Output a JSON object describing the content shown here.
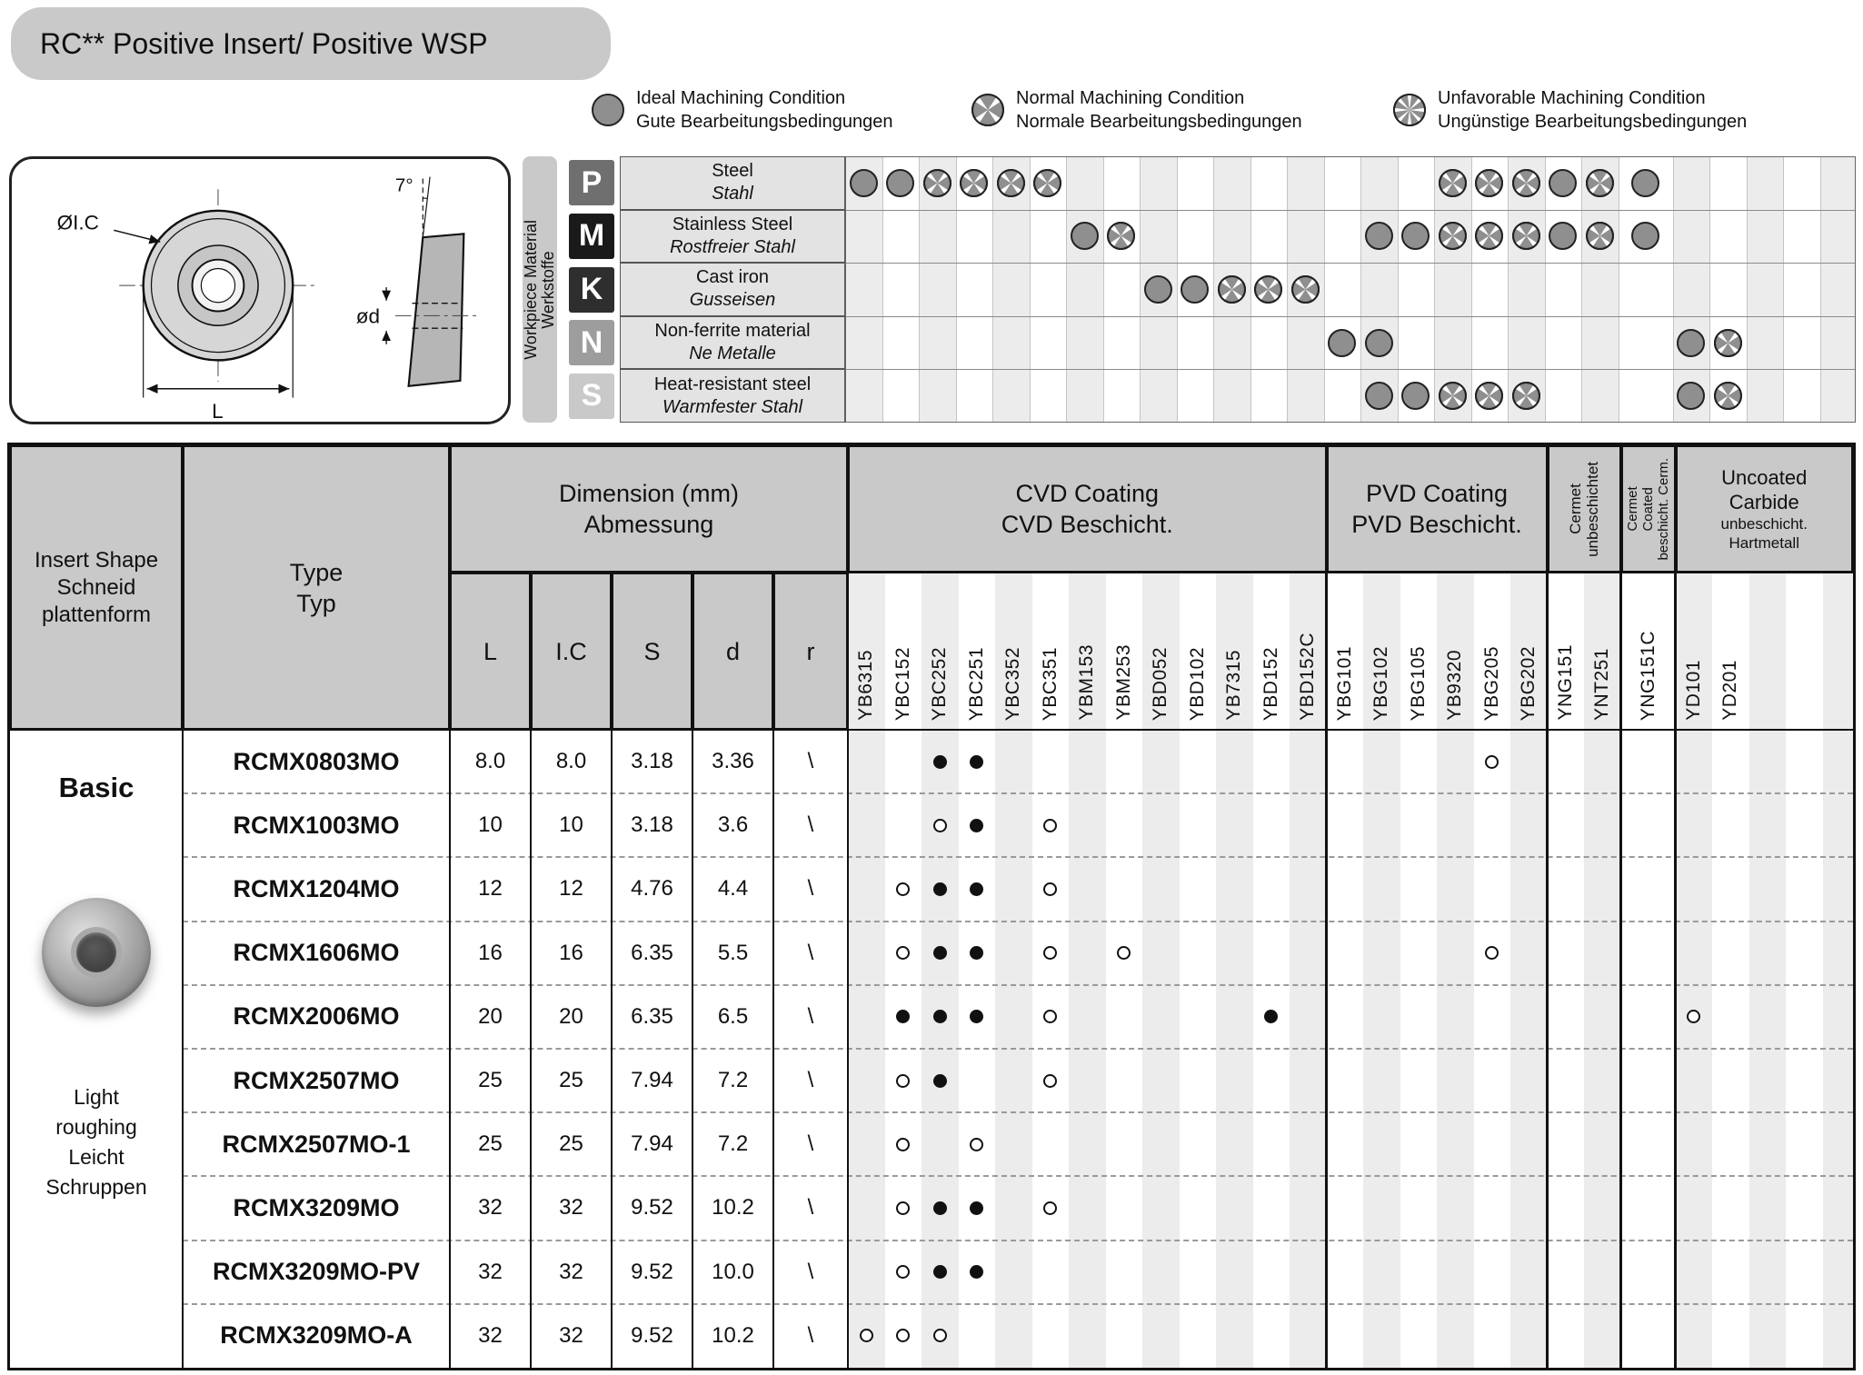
{
  "title": "RC** Positive Insert/ Positive WSP",
  "legend": [
    {
      "kind": "ideal",
      "en": "Ideal Machining Condition",
      "de": "Gute Bearbeitungsbedingungen"
    },
    {
      "kind": "normal",
      "en": "Normal Machining Condition",
      "de": "Normale Bearbeitungsbedingungen"
    },
    {
      "kind": "unfavorable",
      "en": "Unfavorable Machining Condition",
      "de": "Ungünstige Bearbeitungsbedingungen"
    }
  ],
  "diagram": {
    "angle_label": "7°",
    "ic_label": "ØI.C",
    "hole_label": "ød",
    "length_label": "L"
  },
  "materials": {
    "axis_en": "Workpiece Material",
    "axis_de": "Werkstoffe",
    "rows": [
      {
        "code": "P",
        "color": "#6f6f6f",
        "en": "Steel",
        "de": "Stahl",
        "marks": {
          "YB6315": "ideal",
          "YBC152": "ideal",
          "YBC252": "normal",
          "YBC251": "normal",
          "YBC352": "normal",
          "YBC351": "normal",
          "YB9320": "normal",
          "YBG205": "normal",
          "YBG202": "normal",
          "YNG151": "ideal",
          "YNT251": "normal",
          "YNG151C": "ideal"
        }
      },
      {
        "code": "M",
        "color": "#1a1a1a",
        "en": "Stainless Steel",
        "de": "Rostfreier Stahl",
        "marks": {
          "YBM153": "ideal",
          "YBM253": "normal",
          "YBG102": "ideal",
          "YBG105": "ideal",
          "YB9320": "normal",
          "YBG205": "normal",
          "YBG202": "normal",
          "YNG151": "ideal",
          "YNT251": "normal",
          "YNG151C": "ideal"
        }
      },
      {
        "code": "K",
        "color": "#2e2e2e",
        "en": "Cast iron",
        "de": "Gusseisen",
        "marks": {
          "YBD052": "ideal",
          "YBD102": "ideal",
          "YB7315": "normal",
          "YBD152": "normal",
          "YBD152C": "normal"
        }
      },
      {
        "code": "N",
        "color": "#9d9d9d",
        "en": "Non-ferrite material",
        "de": "Ne Metalle",
        "marks": {
          "YBG101": "ideal",
          "YBG102": "ideal",
          "YD101": "ideal",
          "YD201": "normal"
        }
      },
      {
        "code": "S",
        "color": "#c9c9c9",
        "en": "Heat-resistant steel",
        "de": "Warmfester Stahl",
        "marks": {
          "YBG102": "ideal",
          "YBG105": "ideal",
          "YB9320": "normal",
          "YBG205": "normal",
          "YBG202": "normal",
          "YD101": "ideal",
          "YD201": "normal"
        }
      }
    ]
  },
  "table": {
    "headers": {
      "insert_shape": [
        "Insert Shape",
        "Schneid",
        "plattenform"
      ],
      "type": [
        "Type",
        "Typ"
      ],
      "dimension": [
        "Dimension (mm)",
        "Abmessung"
      ],
      "dim_cols": [
        "L",
        "I.C",
        "S",
        "d",
        "r"
      ],
      "cvd": [
        "CVD Coating",
        "CVD Beschicht."
      ],
      "pvd": [
        "PVD Coating",
        "PVD Beschicht."
      ],
      "cermet": [
        "Cermet",
        "unbeschichtet"
      ],
      "cermet_coated": [
        "Cermet",
        "Coated",
        "beschicht. Cerm."
      ],
      "uncoated": [
        "Uncoated",
        "Carbide",
        "unbeschicht.",
        "Hartmetall"
      ]
    },
    "grades": {
      "cvd": [
        "YB6315",
        "YBC152",
        "YBC252",
        "YBC251",
        "YBC352",
        "YBC351",
        "YBM153",
        "YBM253",
        "YBD052",
        "YBD102",
        "YB7315",
        "YBD152",
        "YBD152C"
      ],
      "pvd": [
        "YBG101",
        "YBG102",
        "YBG105",
        "YB9320",
        "YBG205",
        "YBG202"
      ],
      "cermet": [
        "YNG151",
        "YNT251"
      ],
      "cermet_coated": [
        "YNG151C"
      ],
      "uncoated": [
        "YD101",
        "YD201"
      ]
    },
    "shape_info": {
      "style": "Basic",
      "application": [
        "Light",
        "roughing",
        "Leicht",
        "Schruppen"
      ]
    },
    "rows": [
      {
        "type": "RCMX0803MO",
        "dims": [
          "8.0",
          "8.0",
          "3.18",
          "3.36",
          "\\"
        ],
        "dots": {
          "YBC252": "filled",
          "YBC251": "filled",
          "YBG205": "open"
        }
      },
      {
        "type": "RCMX1003MO",
        "dims": [
          "10",
          "10",
          "3.18",
          "3.6",
          "\\"
        ],
        "dots": {
          "YBC252": "open",
          "YBC251": "filled",
          "YBC351": "open"
        }
      },
      {
        "type": "RCMX1204MO",
        "dims": [
          "12",
          "12",
          "4.76",
          "4.4",
          "\\"
        ],
        "dots": {
          "YBC152": "open",
          "YBC252": "filled",
          "YBC251": "filled",
          "YBC351": "open"
        }
      },
      {
        "type": "RCMX1606MO",
        "dims": [
          "16",
          "16",
          "6.35",
          "5.5",
          "\\"
        ],
        "dots": {
          "YBC152": "open",
          "YBC252": "filled",
          "YBC251": "filled",
          "YBC351": "open",
          "YBM253": "open",
          "YBG205": "open"
        }
      },
      {
        "type": "RCMX2006MO",
        "dims": [
          "20",
          "20",
          "6.35",
          "6.5",
          "\\"
        ],
        "dots": {
          "YBC152": "filled",
          "YBC252": "filled",
          "YBC251": "filled",
          "YBC351": "open",
          "YBD152": "filled",
          "YD101": "open"
        }
      },
      {
        "type": "RCMX2507MO",
        "dims": [
          "25",
          "25",
          "7.94",
          "7.2",
          "\\"
        ],
        "dots": {
          "YBC152": "open",
          "YBC252": "filled",
          "YBC351": "open"
        }
      },
      {
        "type": "RCMX2507MO-1",
        "dims": [
          "25",
          "25",
          "7.94",
          "7.2",
          "\\"
        ],
        "dots": {
          "YBC152": "open",
          "YBC251": "open"
        }
      },
      {
        "type": "RCMX3209MO",
        "dims": [
          "32",
          "32",
          "9.52",
          "10.2",
          "\\"
        ],
        "dots": {
          "YBC152": "open",
          "YBC252": "filled",
          "YBC251": "filled",
          "YBC351": "open"
        }
      },
      {
        "type": "RCMX3209MO-PV",
        "dims": [
          "32",
          "32",
          "9.52",
          "10.0",
          "\\"
        ],
        "dots": {
          "YBC152": "open",
          "YBC252": "filled",
          "YBC251": "filled"
        }
      },
      {
        "type": "RCMX3209MO-A",
        "dims": [
          "32",
          "32",
          "9.52",
          "10.2",
          "\\"
        ],
        "dots": {
          "YB6315": "open",
          "YBC152": "open",
          "YBC252": "open"
        }
      }
    ]
  }
}
